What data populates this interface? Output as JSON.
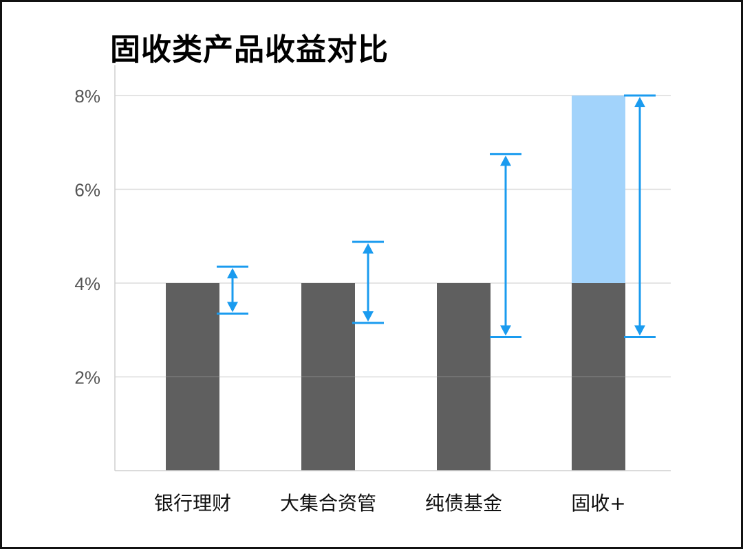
{
  "chart_data": {
    "type": "bar",
    "title": "固收类产品收益对比",
    "categories": [
      "银行理财",
      "大集合资管",
      "纯债基金",
      "固收+"
    ],
    "values": [
      4,
      4,
      4,
      4
    ],
    "extra_segment": {
      "category": "固收+",
      "from": 4,
      "to": 8
    },
    "ranges": [
      {
        "category": "银行理财",
        "low": 3.35,
        "high": 4.35
      },
      {
        "category": "大集合资管",
        "low": 3.15,
        "high": 4.88
      },
      {
        "category": "纯债基金",
        "low": 2.85,
        "high": 6.75
      },
      {
        "category": "固收+",
        "low": 2.85,
        "high": 8.0
      }
    ],
    "yticks": [
      "2%",
      "4%",
      "6%",
      "8%"
    ],
    "ytick_values": [
      2,
      4,
      6,
      8
    ],
    "ylim": [
      0,
      8
    ],
    "grid": true,
    "colors": {
      "bar": "#5f5f5f",
      "extra": "#a2d3fb",
      "range": "#1a9bef",
      "grid": "#dcdcdc"
    }
  }
}
